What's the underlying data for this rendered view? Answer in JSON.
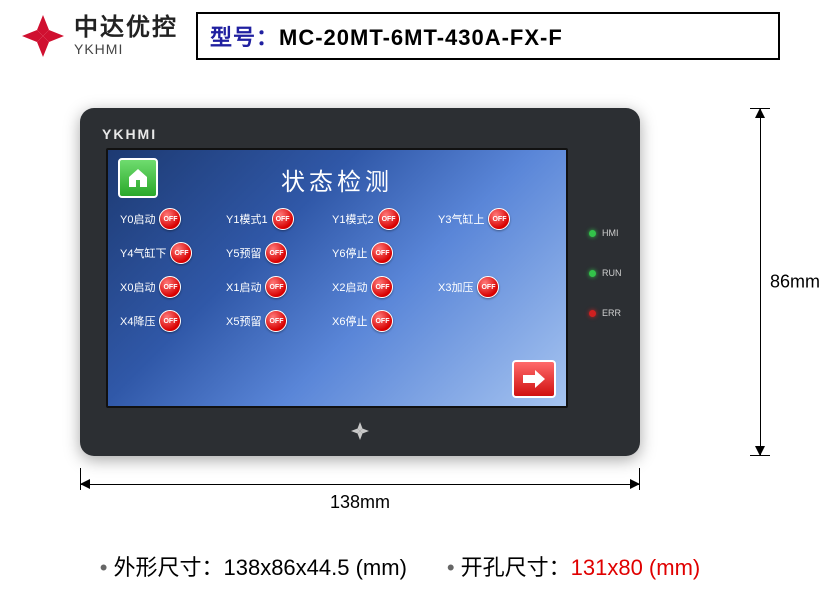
{
  "brand": {
    "cn": "中达优控",
    "en": "YKHMI"
  },
  "model": {
    "label": "型号：",
    "value": "MC-20MT-6MT-430A-FX-F"
  },
  "device_brand": "YKHMI",
  "screen": {
    "title": "状态检测",
    "off_text": "OFF",
    "rows": [
      [
        {
          "label": "Y0启动"
        },
        {
          "label": "Y1模式1"
        },
        {
          "label": "Y1模式2"
        },
        {
          "label": "Y3气缸上"
        }
      ],
      [
        {
          "label": "Y4气缸下"
        },
        {
          "label": "Y5预留"
        },
        {
          "label": "Y6停止"
        },
        null
      ],
      [
        {
          "label": "X0启动"
        },
        {
          "label": "X1启动"
        },
        {
          "label": "X2启动"
        },
        {
          "label": "X3加压"
        }
      ],
      [
        {
          "label": "X4降压"
        },
        {
          "label": "X5预留"
        },
        {
          "label": "X6停止"
        },
        null
      ]
    ]
  },
  "leds": [
    {
      "label": "HMI",
      "color": "#33c24a"
    },
    {
      "label": "RUN",
      "color": "#33c24a"
    },
    {
      "label": "ERR",
      "color": "#d02020"
    }
  ],
  "dims": {
    "width": "138mm",
    "height": "86mm"
  },
  "footer": {
    "outline_label": "外形尺寸：",
    "outline_value": "138x86x44.5 (mm)",
    "cutout_label": "开孔尺寸：",
    "cutout_value": "131x80 (mm)"
  },
  "colors": {
    "logo": "#d01030",
    "model_label": "#2020a0",
    "device_body": "#2c2f33",
    "screen_gradient_from": "#1d3a72",
    "screen_gradient_to": "#a6c4f0",
    "off_button": "#d80000",
    "home_button": "#2aa82a",
    "arrow_button": "#d01010",
    "cutout_text": "#e00000"
  }
}
